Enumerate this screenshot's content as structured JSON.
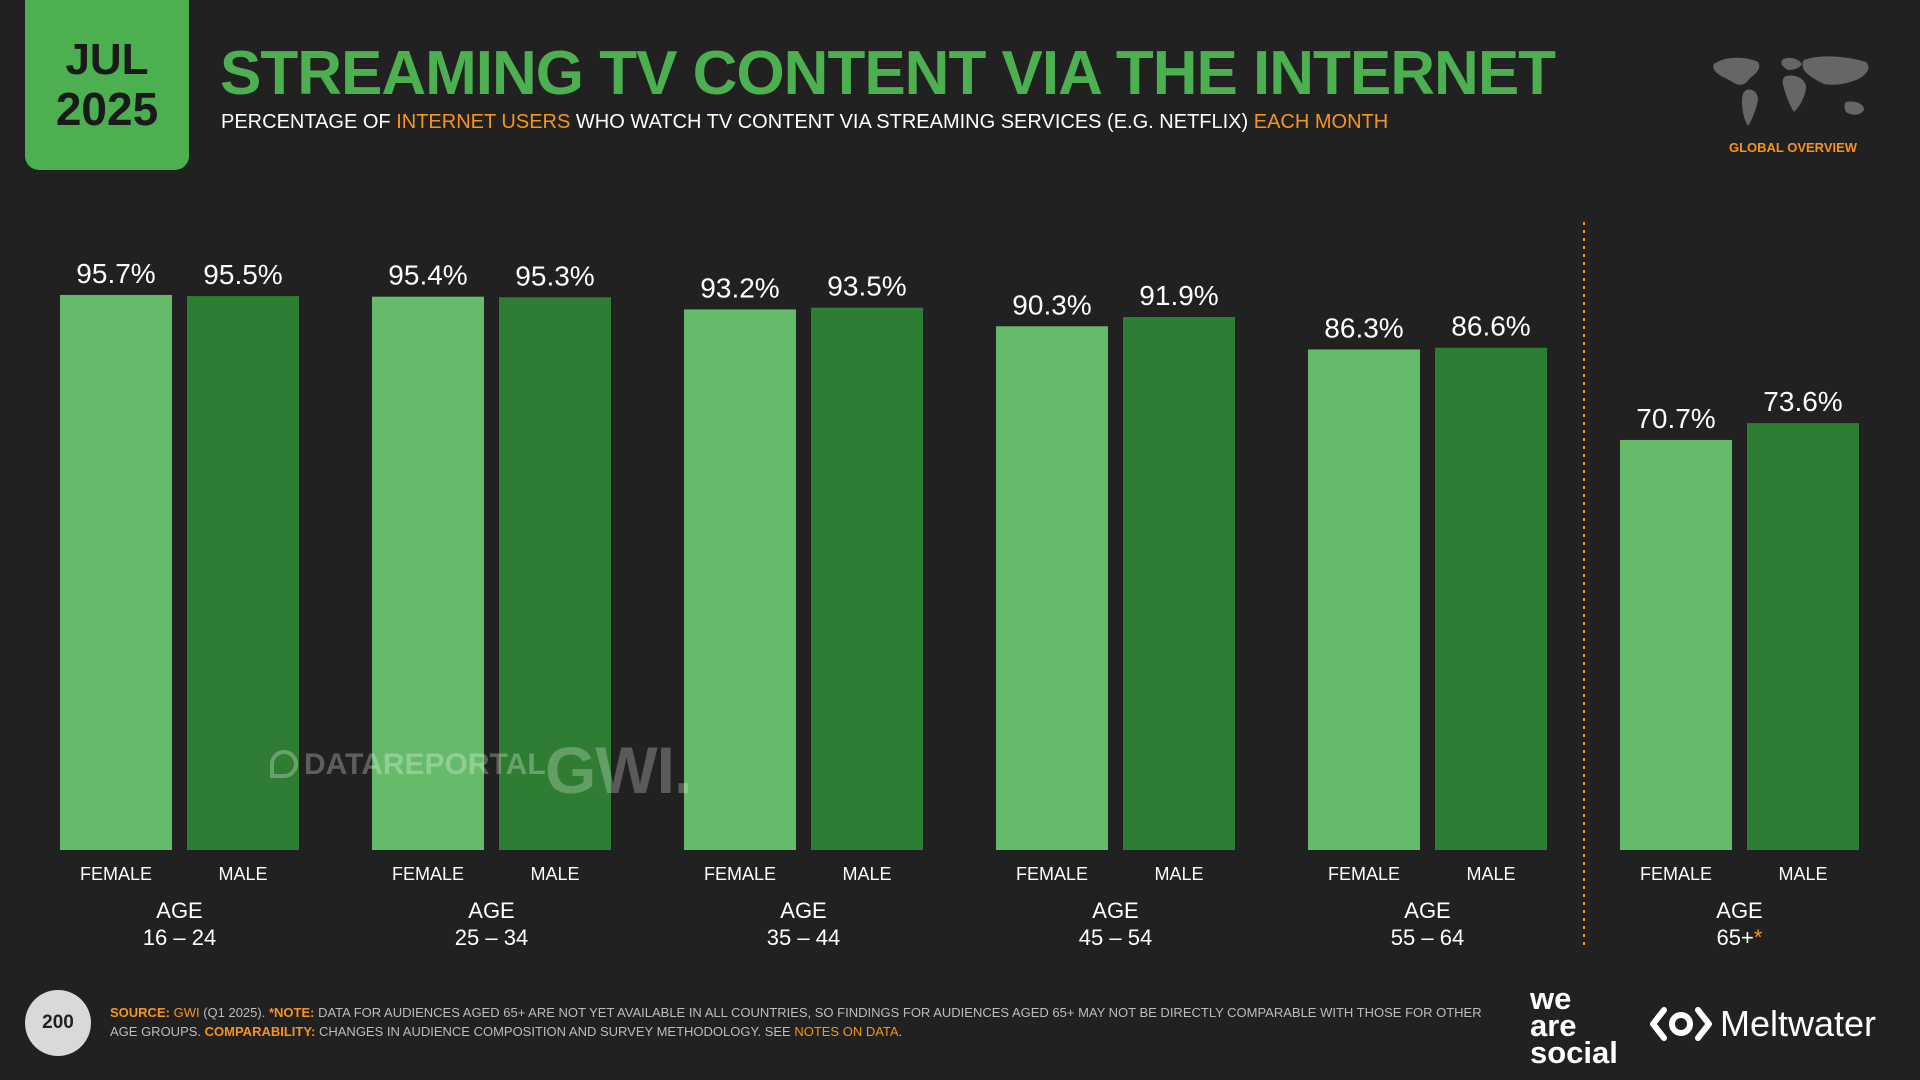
{
  "badge": {
    "month": "JUL",
    "year": "2025"
  },
  "header": {
    "title": "STREAMING TV CONTENT VIA THE INTERNET",
    "subtitle_parts": [
      "PERCENTAGE OF ",
      "INTERNET USERS",
      " WHO WATCH TV CONTENT VIA STREAMING SERVICES (E.G. NETFLIX) ",
      "EACH MONTH"
    ],
    "region": "GLOBAL OVERVIEW"
  },
  "colors": {
    "accent": "#4caf50",
    "female": "#66bb6a",
    "male": "#2e7d32",
    "highlight": "#f7941d",
    "background": "#212121"
  },
  "chart_data": {
    "type": "bar",
    "title": "STREAMING TV CONTENT VIA THE INTERNET",
    "ylim": [
      0,
      100
    ],
    "categories": [
      "AGE 16 – 24",
      "AGE 25 – 34",
      "AGE 35 – 44",
      "AGE 45 – 54",
      "AGE 55 – 64",
      "AGE 65+*"
    ],
    "groups": [
      {
        "label": "AGE",
        "range": "16 – 24",
        "female": 95.7,
        "male": 95.5
      },
      {
        "label": "AGE",
        "range": "25 – 34",
        "female": 95.4,
        "male": 95.3
      },
      {
        "label": "AGE",
        "range": "35 – 44",
        "female": 93.2,
        "male": 93.5
      },
      {
        "label": "AGE",
        "range": "45 – 54",
        "female": 90.3,
        "male": 91.9
      },
      {
        "label": "AGE",
        "range": "55 – 64",
        "female": 86.3,
        "male": 86.6
      },
      {
        "label": "AGE",
        "range": "65+",
        "asterisk": "*",
        "female": 70.7,
        "male": 73.6
      }
    ],
    "series": [
      {
        "name": "FEMALE",
        "values": [
          95.7,
          95.4,
          93.2,
          90.3,
          86.3,
          70.7
        ]
      },
      {
        "name": "MALE",
        "values": [
          95.5,
          95.3,
          93.5,
          91.9,
          86.6,
          73.6
        ]
      }
    ],
    "value_suffix": "%"
  },
  "watermarks": {
    "datareportal": "DATAREPORTAL",
    "gwi": "GWI."
  },
  "footer": {
    "page_number": "200",
    "source_label": "SOURCE:",
    "source_name": "GWI",
    "source_detail": " (Q1 2025). ",
    "note_label": "*NOTE:",
    "note_text": " DATA FOR AUDIENCES AGED 65+ ARE NOT YET AVAILABLE IN ALL COUNTRIES, SO FINDINGS FOR AUDIENCES AGED 65+ MAY NOT BE DIRECTLY COMPARABLE WITH THOSE FOR OTHER AGE GROUPS. ",
    "comparability_label": "COMPARABILITY:",
    "comparability_text": " CHANGES IN AUDIENCE COMPOSITION AND SURVEY METHODOLOGY. SEE ",
    "notes_link": "NOTES ON DATA",
    "end": ".",
    "we_are_social": [
      "we",
      "are",
      "social"
    ],
    "meltwater": "Meltwater"
  }
}
